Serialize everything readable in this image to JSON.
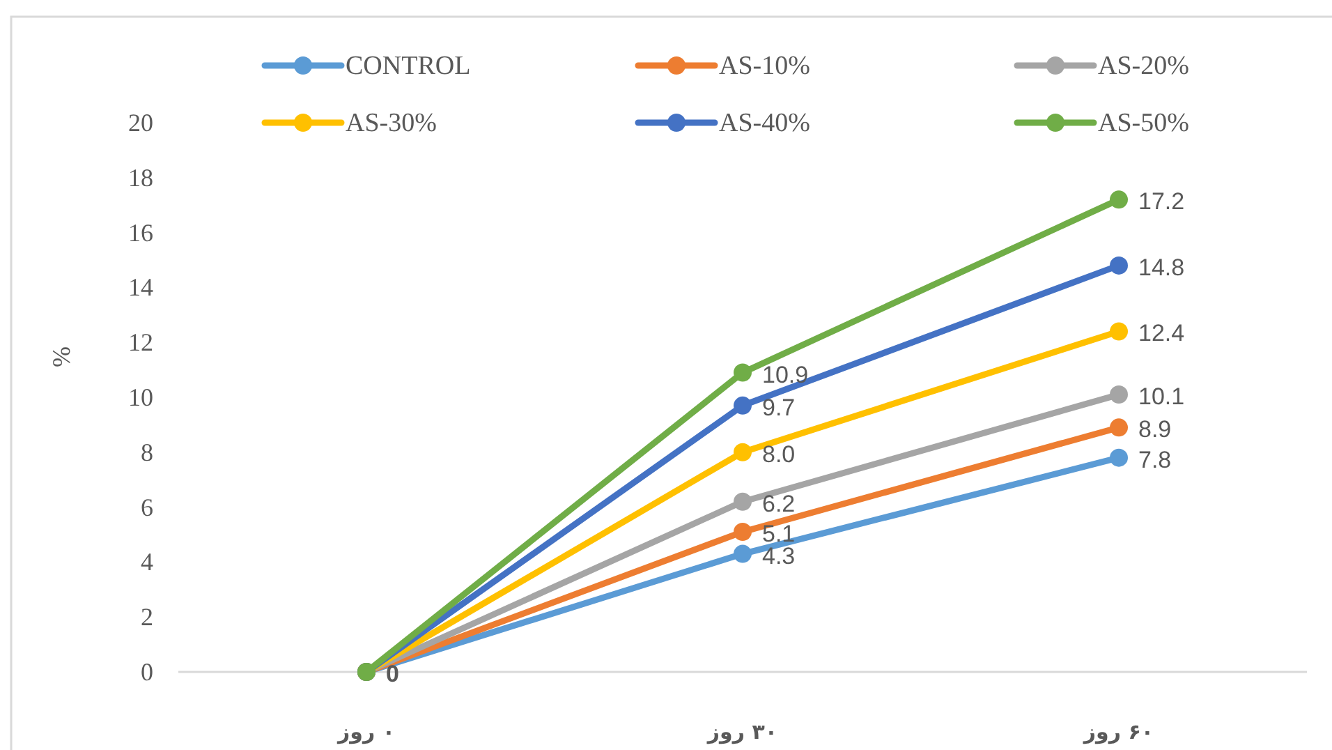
{
  "chart_data": {
    "type": "line",
    "ylabel": "%",
    "categories": [
      "۰ روز",
      "۳۰ روز",
      "۶۰ روز"
    ],
    "ylim": [
      0,
      20
    ],
    "yticks": [
      0,
      2,
      4,
      6,
      8,
      10,
      12,
      14,
      16,
      18,
      20
    ],
    "legend": "top",
    "marker": "circle",
    "line_style": "solid",
    "series": [
      {
        "name": "CONTROL",
        "color": "#5b9bd5",
        "values": [
          0,
          4.3,
          7.8
        ],
        "value_labels": [
          null,
          "4.3",
          "7.8"
        ]
      },
      {
        "name": "AS-10%",
        "color": "#ed7d31",
        "values": [
          0,
          5.1,
          8.9
        ],
        "value_labels": [
          null,
          "5.1",
          "8.9"
        ]
      },
      {
        "name": "AS-20%",
        "color": "#a5a5a5",
        "values": [
          0,
          6.2,
          10.1
        ],
        "value_labels": [
          null,
          "6.2",
          "10.1"
        ]
      },
      {
        "name": "AS-30%",
        "color": "#ffc000",
        "values": [
          0,
          8.0,
          12.4
        ],
        "value_labels": [
          null,
          "8.0",
          "12.4"
        ]
      },
      {
        "name": "AS-40%",
        "color": "#4472c4",
        "values": [
          0,
          9.7,
          14.8
        ],
        "value_labels": [
          null,
          "9.7",
          "14.8"
        ]
      },
      {
        "name": "AS-50%",
        "color": "#70ad47",
        "values": [
          0,
          10.9,
          17.2
        ],
        "value_labels": [
          "0",
          "10.9",
          "17.2"
        ]
      }
    ]
  }
}
